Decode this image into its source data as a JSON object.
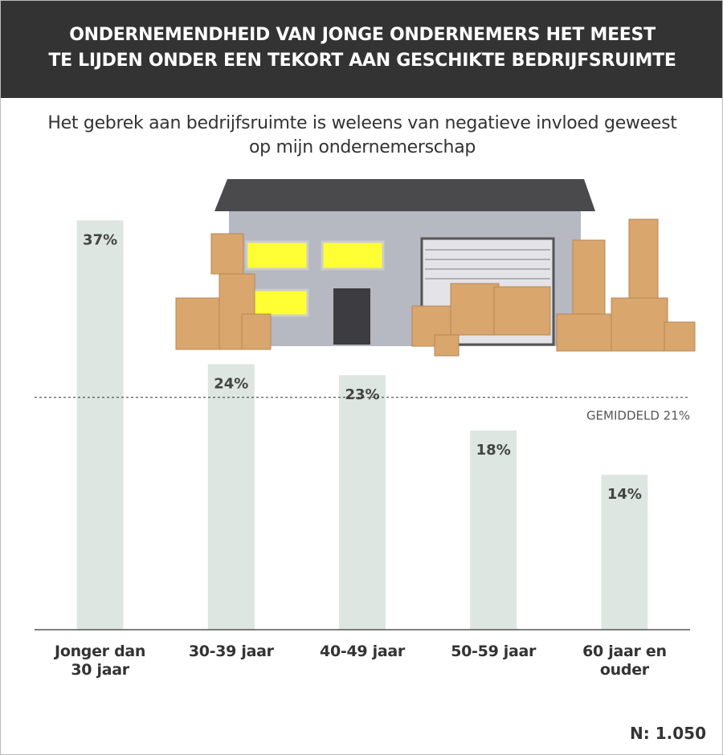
{
  "chart_data": {
    "type": "bar",
    "title": [
      "ONDERNEMENDHEID VAN JONGE ONDERNEMERS HET MEEST",
      "TE LIJDEN ONDER EEN TEKORT AAN GESCHIKTE BEDRIJFSRUIMTE"
    ],
    "subtitle": [
      "Het gebrek aan bedrijfsruimte is weleens van negatieve invloed geweest",
      "op mijn ondernemerschap"
    ],
    "categories": [
      "Jonger dan 30 jaar",
      "30-39 jaar",
      "40-49 jaar",
      "50-59 jaar",
      "60 jaar en ouder"
    ],
    "values": [
      37,
      24,
      23,
      18,
      14
    ],
    "value_labels": [
      "37%",
      "24%",
      "23%",
      "18%",
      "14%"
    ],
    "color": "#dde6e1",
    "ylim": [
      0,
      40
    ],
    "reference_line": {
      "value": 21,
      "label": "GEMIDDELD 21%"
    },
    "note": "N: 1.050"
  }
}
